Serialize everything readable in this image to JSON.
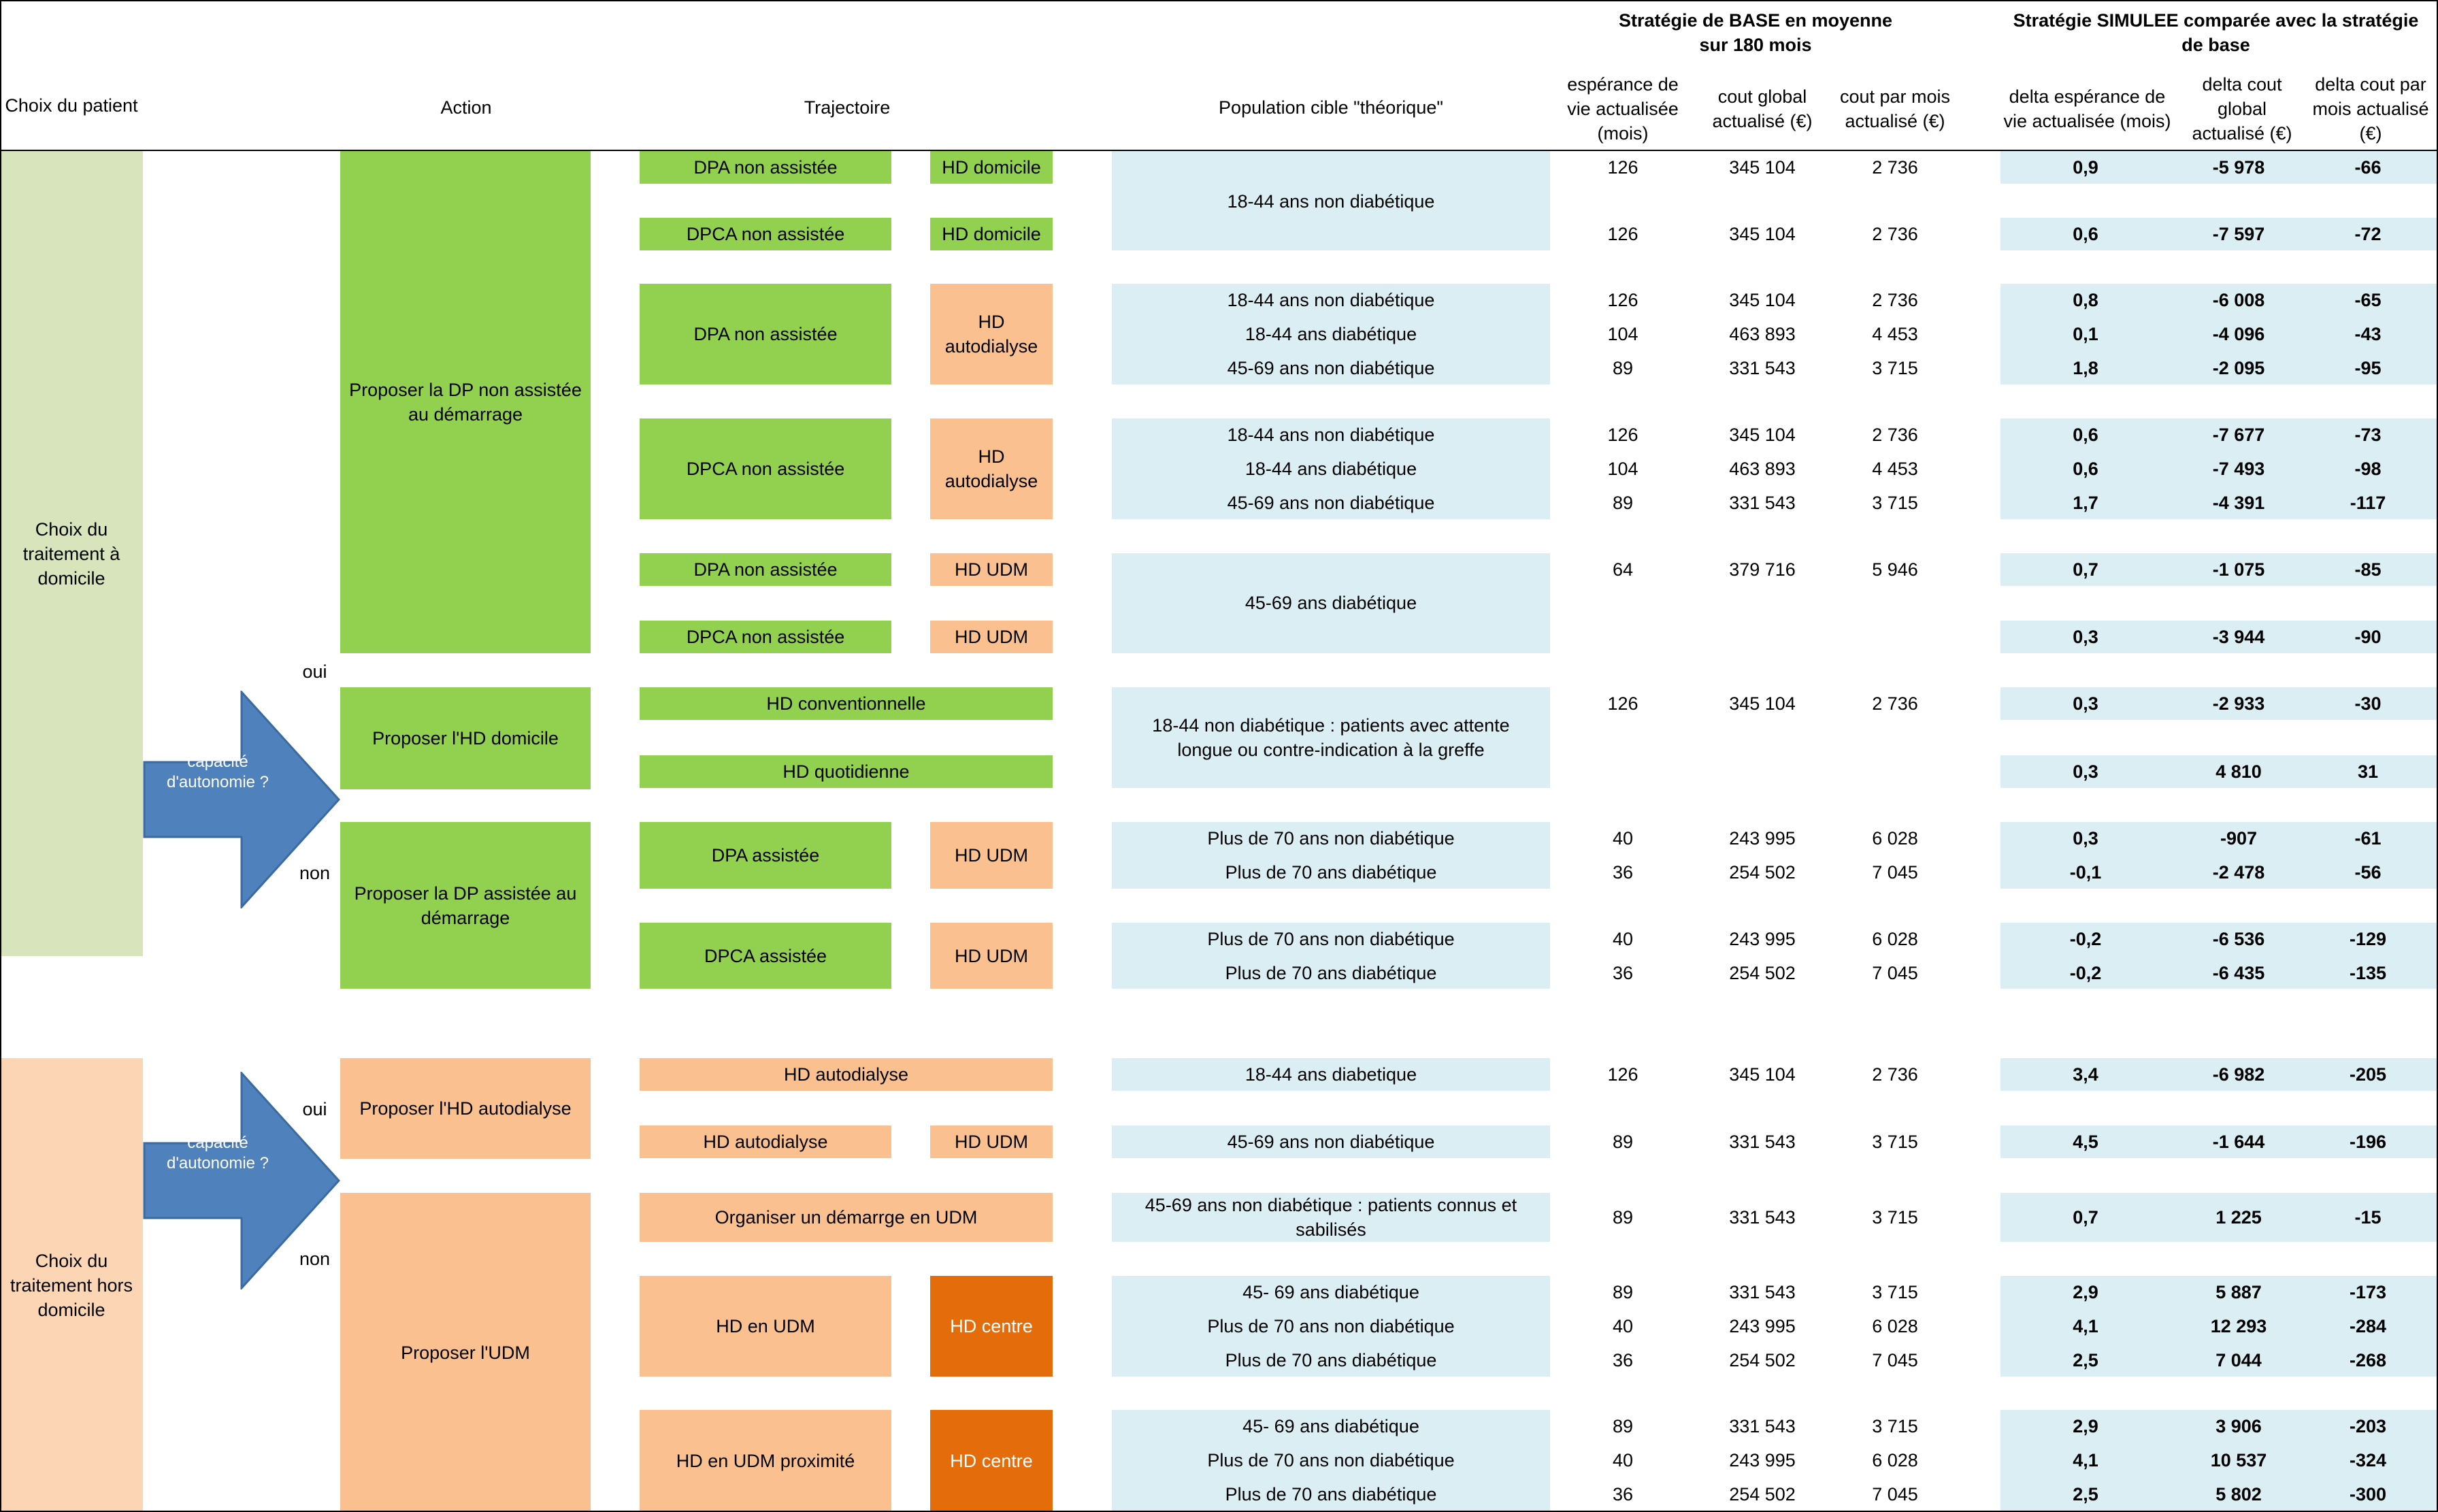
{
  "header": {
    "choix": "Choix du patient",
    "action": "Action",
    "trajectoire": "Trajectoire",
    "population": "Population cible \"théorique\"",
    "base_title": "Stratégie de BASE en moyenne sur 180 mois",
    "base_cols": [
      "espérance de vie actualisée (mois)",
      "cout global actualisé (€)",
      "cout par mois actualisé (€)"
    ],
    "sim_title": "Stratégie SIMULEE comparée avec la stratégie de base",
    "sim_cols": [
      "delta espérance de vie actualisée (mois)",
      "delta cout global actualisé (€)",
      "delta cout par mois actualisé (€)"
    ]
  },
  "groups": {
    "domicile": "Choix du traitement à domicile",
    "hors_domicile": "Choix du traitement hors domicile",
    "capacite": "capacité d'autonomie ?",
    "oui": "oui",
    "non": "non"
  },
  "actions": [
    "Proposer la DP non assistée au démarrage",
    "Proposer l'HD domicile",
    "Proposer la DP assistée au démarrage",
    "Proposer l'HD autodialyse",
    "Proposer l'UDM"
  ],
  "trajectories": [
    {
      "a": "DPA non assistée",
      "b": "HD domicile"
    },
    {
      "a": "DPCA non assistée",
      "b": "HD domicile"
    },
    {
      "a": "DPA non assistée",
      "b": "HD autodialyse"
    },
    {
      "a": "DPCA non assistée",
      "b": "HD autodialyse"
    },
    {
      "a": "DPA non assistée",
      "b": "HD UDM"
    },
    {
      "a": "DPCA non assistée",
      "b": "HD UDM"
    },
    {
      "a": "HD  conventionnelle",
      "b": ""
    },
    {
      "a": "HD quotidienne",
      "b": ""
    },
    {
      "a": "DPA assistée",
      "b": "HD UDM"
    },
    {
      "a": "DPCA assistée",
      "b": "HD UDM"
    },
    {
      "a": "HD autodialyse",
      "b": ""
    },
    {
      "a": "HD autodialyse",
      "b": "HD UDM"
    },
    {
      "a": "Organiser un démarrge en UDM",
      "b": ""
    },
    {
      "a": "HD en UDM",
      "b": "HD centre"
    },
    {
      "a": "HD en UDM proximité",
      "b": "HD centre"
    }
  ],
  "populations": [
    "18-44 ans non diabétique",
    "18-44 ans non diabétique",
    "18-44 ans   diabétique",
    "45-69 ans non diabétique",
    "18-44 ans non diabétique",
    "18-44 ans   diabétique",
    "45-69 ans non diabétique",
    "45-69 ans diabétique",
    "18-44 non diabétique :  patients avec attente longue ou contre-indication à la greffe",
    "Plus de 70 ans non diabétique",
    "Plus de 70 ans  diabétique",
    "Plus de 70 ans non diabétique",
    "Plus de 70 ans  diabétique",
    "18-44 ans diabetique",
    "45-69 ans non diabétique",
    "45-69 ans non diabétique : patients connus et sabilisés",
    "45- 69 ans diabétique",
    "Plus de 70 ans non diabétique",
    "Plus de 70 ans diabétique",
    "45- 69 ans diabétique",
    "Plus de 70 ans non diabétique",
    "Plus de 70 ans diabétique"
  ],
  "rows": [
    {
      "esp": "126",
      "cg": "345 104",
      "cm": "2 736",
      "d1": "0,9",
      "d2": "-5 978",
      "d3": "-66"
    },
    {
      "esp": "126",
      "cg": "345 104",
      "cm": "2 736",
      "d1": "0,6",
      "d2": "-7 597",
      "d3": "-72"
    },
    {
      "esp": "126",
      "cg": "345 104",
      "cm": "2 736",
      "d1": "0,8",
      "d2": "-6 008",
      "d3": "-65"
    },
    {
      "esp": "104",
      "cg": "463 893",
      "cm": "4 453",
      "d1": "0,1",
      "d2": "-4 096",
      "d3": "-43"
    },
    {
      "esp": "89",
      "cg": "331 543",
      "cm": "3 715",
      "d1": "1,8",
      "d2": "-2 095",
      "d3": "-95"
    },
    {
      "esp": "126",
      "cg": "345 104",
      "cm": "2 736",
      "d1": "0,6",
      "d2": "-7 677",
      "d3": "-73"
    },
    {
      "esp": "104",
      "cg": "463 893",
      "cm": "4 453",
      "d1": "0,6",
      "d2": "-7 493",
      "d3": "-98"
    },
    {
      "esp": "89",
      "cg": "331 543",
      "cm": "3 715",
      "d1": "1,7",
      "d2": "-4 391",
      "d3": "-117"
    },
    {
      "esp": "64",
      "cg": "379 716",
      "cm": "5 946",
      "d1": "0,7",
      "d2": "-1 075",
      "d3": "-85"
    },
    {
      "esp": "",
      "cg": "",
      "cm": "",
      "d1": "0,3",
      "d2": "-3 944",
      "d3": "-90"
    },
    {
      "esp": "126",
      "cg": "345 104",
      "cm": "2 736",
      "d1": "0,3",
      "d2": "-2 933",
      "d3": "-30"
    },
    {
      "esp": "",
      "cg": "",
      "cm": "",
      "d1": "0,3",
      "d2": "4 810",
      "d3": "31"
    },
    {
      "esp": "40",
      "cg": "243 995",
      "cm": "6 028",
      "d1": "0,3",
      "d2": "-907",
      "d3": "-61"
    },
    {
      "esp": "36",
      "cg": "254 502",
      "cm": "7 045",
      "d1": "-0,1",
      "d2": "-2 478",
      "d3": "-56"
    },
    {
      "esp": "40",
      "cg": "243 995",
      "cm": "6 028",
      "d1": "-0,2",
      "d2": "-6 536",
      "d3": "-129"
    },
    {
      "esp": "36",
      "cg": "254 502",
      "cm": "7 045",
      "d1": "-0,2",
      "d2": "-6 435",
      "d3": "-135"
    },
    {
      "esp": "126",
      "cg": "345 104",
      "cm": "2 736",
      "d1": "3,4",
      "d2": "-6 982",
      "d3": "-205"
    },
    {
      "esp": "89",
      "cg": "331 543",
      "cm": "3 715",
      "d1": "4,5",
      "d2": "-1 644",
      "d3": "-196"
    },
    {
      "esp": "89",
      "cg": "331 543",
      "cm": "3 715",
      "d1": "0,7",
      "d2": "1 225",
      "d3": "-15"
    },
    {
      "esp": "89",
      "cg": "331 543",
      "cm": "3 715",
      "d1": "2,9",
      "d2": "5 887",
      "d3": "-173"
    },
    {
      "esp": "40",
      "cg": "243 995",
      "cm": "6 028",
      "d1": "4,1",
      "d2": "12 293",
      "d3": "-284"
    },
    {
      "esp": "36",
      "cg": "254 502",
      "cm": "7 045",
      "d1": "2,5",
      "d2": "7 044",
      "d3": "-268"
    },
    {
      "esp": "89",
      "cg": "331 543",
      "cm": "3 715",
      "d1": "2,9",
      "d2": "3 906",
      "d3": "-203"
    },
    {
      "esp": "40",
      "cg": "243 995",
      "cm": "6 028",
      "d1": "4,1",
      "d2": "10 537",
      "d3": "-324"
    },
    {
      "esp": "36",
      "cg": "254 502",
      "cm": "7 045",
      "d1": "2,5",
      "d2": "5 802",
      "d3": "-300"
    }
  ],
  "colors": {
    "green": "#92d050",
    "orange": "#fac090",
    "dark_orange": "#e46c0a",
    "light_blue": "#daeef3",
    "pale_green": "#d8e4bc",
    "pale_orange": "#fcd5b4",
    "arrow_blue": "#4f81bd"
  }
}
